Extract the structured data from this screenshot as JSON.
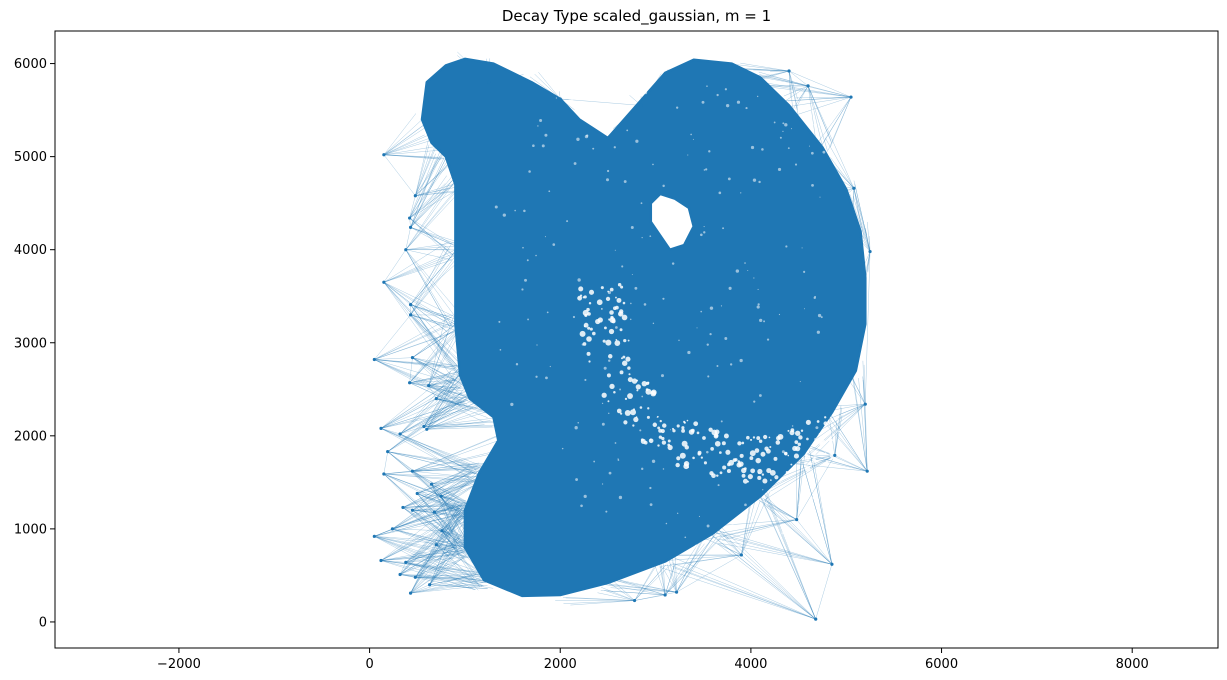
{
  "chart_data": {
    "type": "scatter",
    "title": "Decay Type scaled_gaussian, m = 1",
    "xlabel": "",
    "ylabel": "",
    "xlim": [
      -3300,
      8900
    ],
    "ylim": [
      -280,
      6350
    ],
    "xticks": [
      -2000,
      0,
      2000,
      4000,
      6000,
      8000
    ],
    "yticks": [
      0,
      1000,
      2000,
      3000,
      4000,
      5000,
      6000
    ],
    "grid": false,
    "legend": "none",
    "color": "#1f77b4",
    "series": [
      {
        "kind": "tissue-outline",
        "points": [
          [
            600,
            5800
          ],
          [
            800,
            5980
          ],
          [
            1000,
            6050
          ],
          [
            1300,
            6000
          ],
          [
            1700,
            5800
          ],
          [
            2000,
            5620
          ],
          [
            2200,
            5400
          ],
          [
            2500,
            5200
          ],
          [
            2800,
            5550
          ],
          [
            3100,
            5900
          ],
          [
            3400,
            6040
          ],
          [
            3800,
            6000
          ],
          [
            4100,
            5850
          ],
          [
            4400,
            5550
          ],
          [
            4750,
            5100
          ],
          [
            5000,
            4650
          ],
          [
            5150,
            4200
          ],
          [
            5200,
            3700
          ],
          [
            5200,
            3200
          ],
          [
            5100,
            2700
          ],
          [
            4850,
            2250
          ],
          [
            4550,
            1800
          ],
          [
            4100,
            1350
          ],
          [
            3600,
            950
          ],
          [
            3100,
            650
          ],
          [
            2500,
            420
          ],
          [
            2000,
            290
          ],
          [
            1600,
            280
          ],
          [
            1200,
            450
          ],
          [
            1000,
            800
          ],
          [
            1000,
            1200
          ],
          [
            1150,
            1600
          ],
          [
            1350,
            1950
          ],
          [
            1300,
            2200
          ],
          [
            1050,
            2400
          ],
          [
            950,
            2650
          ],
          [
            900,
            3200
          ],
          [
            900,
            4000
          ],
          [
            900,
            4700
          ],
          [
            800,
            5000
          ],
          [
            650,
            5150
          ],
          [
            550,
            5400
          ]
        ]
      },
      {
        "kind": "inner-cavity",
        "points": [
          [
            2950,
            4500
          ],
          [
            3050,
            4600
          ],
          [
            3200,
            4550
          ],
          [
            3350,
            4450
          ],
          [
            3400,
            4250
          ],
          [
            3300,
            4050
          ],
          [
            3150,
            4000
          ],
          [
            3050,
            4150
          ],
          [
            2950,
            4300
          ]
        ]
      },
      {
        "kind": "sparse-left-points",
        "points": [
          [
            150,
            5020
          ],
          [
            480,
            4580
          ],
          [
            420,
            4340
          ],
          [
            430,
            4240
          ],
          [
            380,
            4000
          ],
          [
            150,
            3650
          ],
          [
            430,
            3410
          ],
          [
            430,
            3300
          ],
          [
            50,
            2820
          ],
          [
            450,
            2840
          ],
          [
            420,
            2570
          ],
          [
            620,
            2540
          ],
          [
            700,
            2400
          ],
          [
            120,
            2080
          ],
          [
            320,
            2020
          ],
          [
            570,
            2100
          ],
          [
            600,
            2070
          ],
          [
            190,
            1830
          ],
          [
            150,
            1590
          ],
          [
            450,
            1620
          ],
          [
            650,
            1480
          ],
          [
            500,
            1380
          ],
          [
            750,
            1350
          ],
          [
            350,
            1230
          ],
          [
            450,
            1200
          ],
          [
            680,
            1180
          ],
          [
            50,
            920
          ],
          [
            240,
            1000
          ],
          [
            760,
            980
          ],
          [
            120,
            660
          ],
          [
            380,
            640
          ],
          [
            320,
            510
          ],
          [
            480,
            480
          ],
          [
            700,
            830
          ],
          [
            430,
            310
          ],
          [
            630,
            400
          ]
        ]
      },
      {
        "kind": "sparse-right-points",
        "points": [
          [
            5050,
            5640
          ],
          [
            4400,
            5920
          ],
          [
            4600,
            5760
          ],
          [
            5080,
            4660
          ],
          [
            5250,
            3980
          ],
          [
            5200,
            2340
          ],
          [
            5220,
            1620
          ],
          [
            4880,
            1790
          ],
          [
            4480,
            1100
          ],
          [
            4850,
            620
          ],
          [
            4680,
            30
          ],
          [
            3900,
            720
          ],
          [
            3220,
            320
          ],
          [
            2780,
            230
          ],
          [
            3100,
            290
          ],
          [
            1250,
            5800
          ],
          [
            2000,
            5620
          ],
          [
            2850,
            5550
          ]
        ]
      }
    ]
  }
}
